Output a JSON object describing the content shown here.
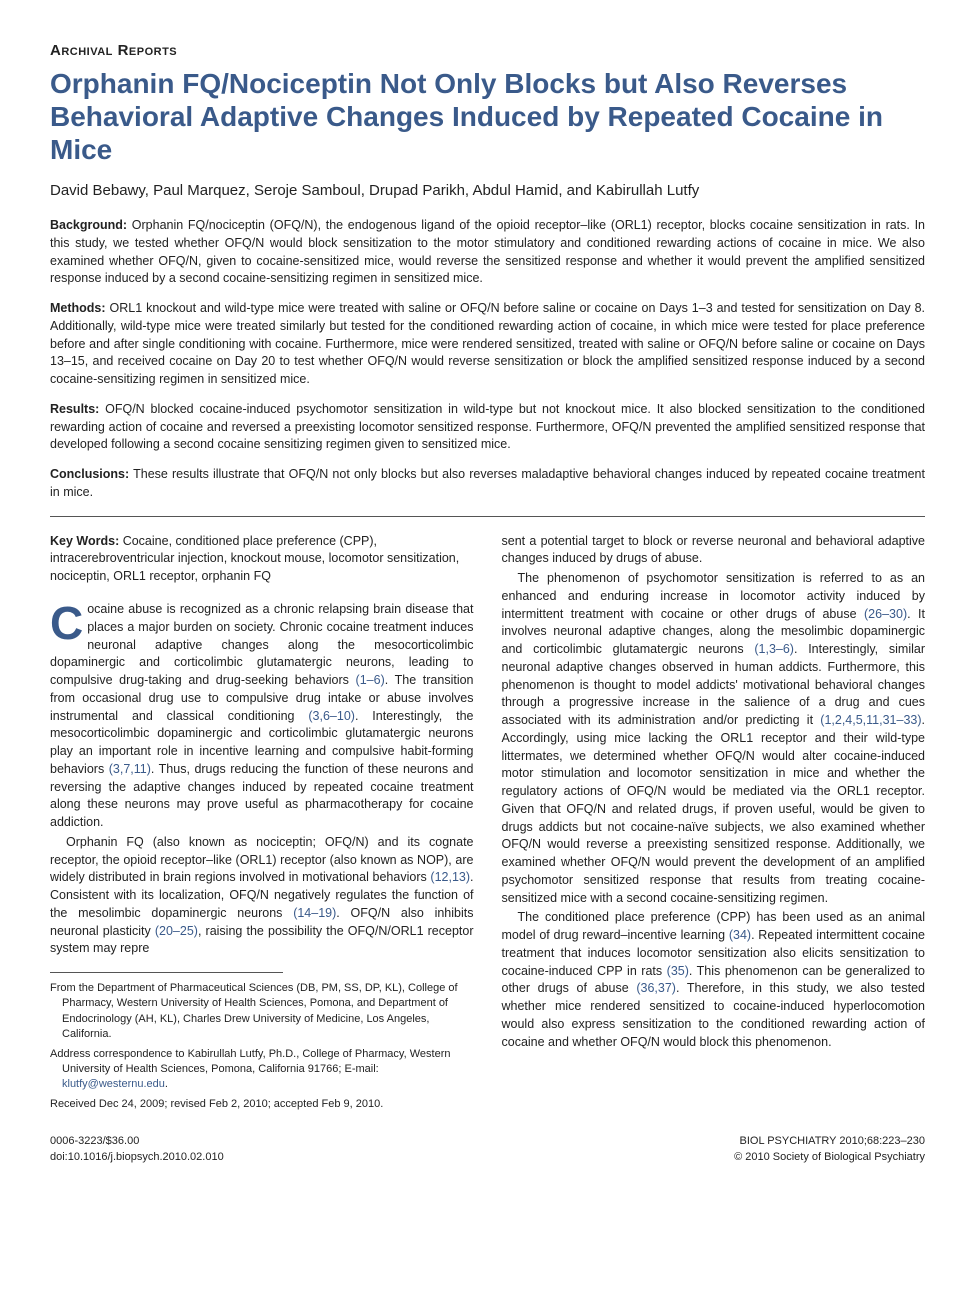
{
  "header": {
    "section_label": "Archival Reports",
    "title": "Orphanin FQ/Nociceptin Not Only Blocks but Also Reverses Behavioral Adaptive Changes Induced by Repeated Cocaine in Mice",
    "authors": "David Bebawy, Paul Marquez, Seroje Samboul, Drupad Parikh, Abdul Hamid, and Kabirullah Lutfy"
  },
  "abstract": {
    "background_label": "Background:",
    "background_text": " Orphanin FQ/nociceptin (OFQ/N), the endogenous ligand of the opioid receptor–like (ORL1) receptor, blocks cocaine sensitization in rats. In this study, we tested whether OFQ/N would block sensitization to the motor stimulatory and conditioned rewarding actions of cocaine in mice. We also examined whether OFQ/N, given to cocaine-sensitized mice, would reverse the sensitized response and whether it would prevent the amplified sensitized response induced by a second cocaine-sensitizing regimen in sensitized mice.",
    "methods_label": "Methods:",
    "methods_text": " ORL1 knockout and wild-type mice were treated with saline or OFQ/N before saline or cocaine on Days 1–3 and tested for sensitization on Day 8. Additionally, wild-type mice were treated similarly but tested for the conditioned rewarding action of cocaine, in which mice were tested for place preference before and after single conditioning with cocaine. Furthermore, mice were rendered sensitized, treated with saline or OFQ/N before saline or cocaine on Days 13–15, and received cocaine on Day 20 to test whether OFQ/N would reverse sensitization or block the amplified sensitized response induced by a second cocaine-sensitizing regimen in sensitized mice.",
    "results_label": "Results:",
    "results_text": " OFQ/N blocked cocaine-induced psychomotor sensitization in wild-type but not knockout mice. It also blocked sensitization to the conditioned rewarding action of cocaine and reversed a preexisting locomotor sensitized response. Furthermore, OFQ/N prevented the amplified sensitized response that developed following a second cocaine sensitizing regimen given to sensitized mice.",
    "conclusions_label": "Conclusions:",
    "conclusions_text": " These results illustrate that OFQ/N not only blocks but also reverses maladaptive behavioral changes induced by repeated cocaine treatment in mice."
  },
  "keywords": {
    "label": "Key Words:",
    "text": " Cocaine, conditioned place preference (CPP), intracerebroventricular injection, knockout mouse, locomotor sensitization, nociceptin, ORL1 receptor, orphanin FQ"
  },
  "body": {
    "dropcap": "C",
    "p1": "ocaine abuse is recognized as a chronic relapsing brain disease that places a major burden on society. Chronic cocaine treatment induces neuronal adaptive changes along the mesocorticolimbic dopaminergic and corticolimbic glutamatergic neurons, leading to compulsive drug-taking and drug-seeking behaviors ",
    "p1_ref": "(1–6)",
    "p1b": ". The transition from occasional drug use to compulsive drug intake or abuse involves instrumental and classical conditioning ",
    "p1_ref2": "(3,6–10)",
    "p1c": ". Interestingly, the mesocorticolimbic dopaminergic and corticolimbic glutamatergic neurons play an important role in incentive learning and compulsive habit-forming behaviors ",
    "p1_ref3": "(3,7,11)",
    "p1d": ". Thus, drugs reducing the function of these neurons and reversing the adaptive changes induced by repeated cocaine treatment along these neurons may prove useful as pharmacotherapy for cocaine addiction.",
    "p2a": "Orphanin FQ (also known as nociceptin; OFQ/N) and its cognate receptor, the opioid receptor–like (ORL1) receptor (also known as NOP), are widely distributed in brain regions involved in motivational behaviors ",
    "p2_ref1": "(12,13)",
    "p2b": ". Consistent with its localization, OFQ/N negatively regulates the function of the mesolimbic dopaminergic neurons ",
    "p2_ref2": "(14–19)",
    "p2c": ". OFQ/N also inhibits neuronal plasticity ",
    "p2_ref3": "(20–25)",
    "p2d": ", raising the possibility the OFQ/N/ORL1 receptor system may repre",
    "p2e": "sent a potential target to block or reverse neuronal and behavioral adaptive changes induced by drugs of abuse.",
    "p3a": "The phenomenon of psychomotor sensitization is referred to as an enhanced and enduring increase in locomotor activity induced by intermittent treatment with cocaine or other drugs of abuse ",
    "p3_ref1": "(26–30)",
    "p3b": ". It involves neuronal adaptive changes, along the mesolimbic dopaminergic and corticolimbic glutamatergic neurons ",
    "p3_ref2": "(1,3–6)",
    "p3c": ". Interestingly, similar neuronal adaptive changes observed in human addicts. Furthermore, this phenomenon is thought to model addicts' motivational behavioral changes through a progressive increase in the salience of a drug and cues associated with its administration and/or predicting it ",
    "p3_ref3": "(1,2,4,5,11,31–33)",
    "p3d": ". Accordingly, using mice lacking the ORL1 receptor and their wild-type littermates, we determined whether OFQ/N would alter cocaine-induced motor stimulation and locomotor sensitization in mice and whether the regulatory actions of OFQ/N would be mediated via the ORL1 receptor. Given that OFQ/N and related drugs, if proven useful, would be given to drugs addicts but not cocaine-naïve subjects, we also examined whether OFQ/N would reverse a preexisting sensitized response. Additionally, we examined whether OFQ/N would prevent the development of an amplified psychomotor sensitized response that results from treating cocaine-sensitized mice with a second cocaine-sensitizing regimen.",
    "p4a": "The conditioned place preference (CPP) has been used as an animal model of drug reward–incentive learning ",
    "p4_ref1": "(34)",
    "p4b": ". Repeated intermittent cocaine treatment that induces locomotor sensitization also elicits sensitization to cocaine-induced CPP in rats ",
    "p4_ref2": "(35)",
    "p4c": ". This phenomenon can be generalized to other drugs of abuse ",
    "p4_ref3": "(36,37)",
    "p4d": ". Therefore, in this study, we also tested whether mice rendered sensitized to cocaine-induced hyperlocomotion would also express sensitization to the conditioned rewarding action of cocaine and whether OFQ/N would block this phenomenon."
  },
  "footnotes": {
    "f1": "From the Department of Pharmaceutical Sciences (DB, PM, SS, DP, KL), College of Pharmacy, Western University of Health Sciences, Pomona, and Department of Endocrinology (AH, KL), Charles Drew University of Medicine, Los Angeles, California.",
    "f2a": "Address correspondence to Kabirullah Lutfy, Ph.D., College of Pharmacy, Western University of Health Sciences, Pomona, California 91766; E-mail: ",
    "f2_email": "klutfy@westernu.edu",
    "f2b": ".",
    "f3": "Received Dec 24, 2009; revised Feb 2, 2010; accepted Feb 9, 2010."
  },
  "footer": {
    "left_line1": "0006-3223/$36.00",
    "left_line2": "doi:10.1016/j.biopsych.2010.02.010",
    "right_line1": "BIOL PSYCHIATRY 2010;68:223–230",
    "right_line2": "© 2010 Society of Biological Psychiatry"
  }
}
